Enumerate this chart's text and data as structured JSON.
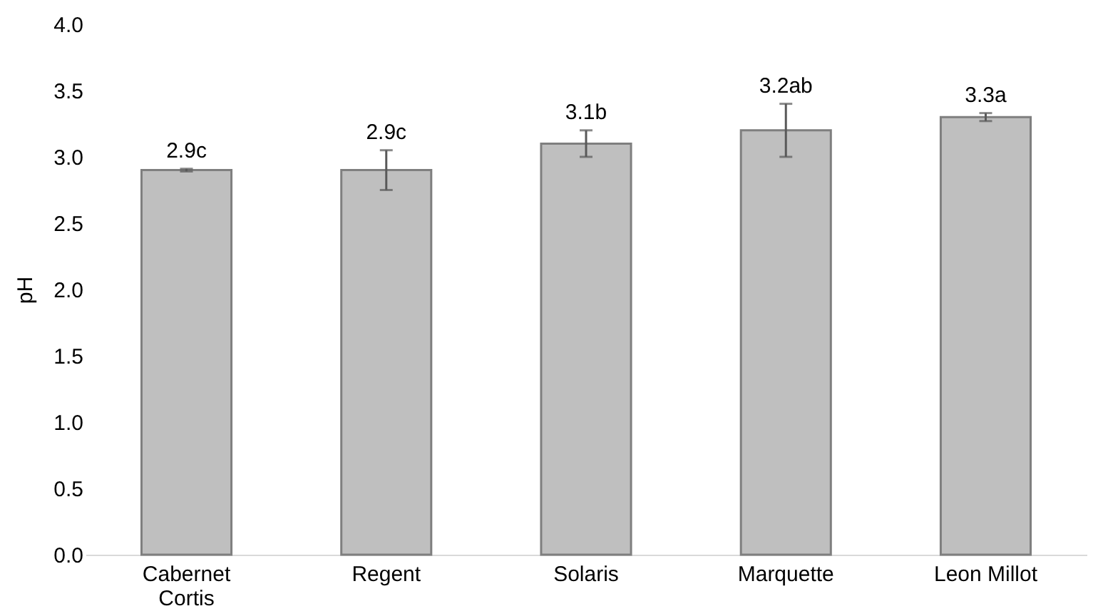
{
  "chart_data": {
    "type": "bar",
    "ylabel": "pH",
    "categories": [
      "Cabernet Cortis",
      "Regent",
      "Solaris",
      "Marquette",
      "Leon Millot"
    ],
    "values": [
      2.9,
      2.9,
      3.1,
      3.2,
      3.3
    ],
    "errors": [
      0.01,
      0.15,
      0.1,
      0.2,
      0.03
    ],
    "value_labels": [
      "2.9c",
      "2.9c",
      "3.1b",
      "3.2ab",
      "3.3a"
    ],
    "color": "#bfbfbf",
    "ylim": [
      0,
      4
    ],
    "yticks": [
      {
        "value": 0,
        "label": "0.0"
      },
      0.5,
      {
        "value": 1,
        "label": "1.0"
      },
      1.5,
      {
        "value": 2,
        "label": "2.0"
      },
      2.5,
      {
        "value": 3,
        "label": "3.0"
      },
      3.5,
      {
        "value": 4,
        "label": "4.0"
      }
    ],
    "grid": false
  }
}
